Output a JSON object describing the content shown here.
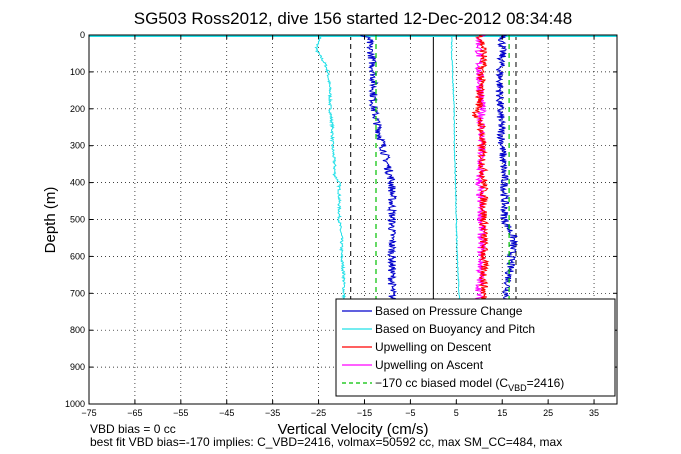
{
  "chart_data": {
    "type": "line",
    "title": "SG503 Ross2012, dive 156 started 12-Dec-2012 08:34:48",
    "xlabel": "Vertical Velocity (cm/s)",
    "ylabel": "Depth (m)",
    "xlim": [
      -75,
      40
    ],
    "ylim": [
      1000,
      0
    ],
    "x_ticks": [
      -75,
      -65,
      -55,
      -45,
      -35,
      -25,
      -15,
      -5,
      5,
      15,
      25,
      35
    ],
    "y_ticks": [
      0,
      100,
      200,
      300,
      400,
      500,
      600,
      700,
      800,
      900,
      1000
    ],
    "grid": true,
    "legend_placement": "bottom-right",
    "colors": {
      "pressure": "#0000cc",
      "buoyancy": "#22e0e8",
      "descent": "#ff0000",
      "ascent": "#ff00ff",
      "model": "#00c000",
      "reference": "#000000"
    },
    "series": [
      {
        "name": "Based on Pressure Change",
        "noise": 0.9,
        "depth": [
          0,
          10,
          30,
          50,
          100,
          150,
          200,
          250,
          300,
          350,
          400,
          450,
          500,
          550,
          600,
          650,
          700,
          720
        ],
        "velocity": [
          -16,
          -14,
          -14,
          -13.5,
          -13,
          -13,
          -13,
          -12,
          -11,
          -10,
          -9,
          -9,
          -9,
          -9,
          -9,
          -9,
          -9,
          -9
        ]
      },
      {
        "name": "Based on Pressure Change",
        "noise": 0.9,
        "depth": [
          0,
          10,
          50,
          100,
          200,
          300,
          400,
          500,
          550,
          600,
          650,
          700,
          720
        ],
        "velocity": [
          16,
          15,
          15,
          14.5,
          14.5,
          15,
          15.5,
          15.5,
          17.5,
          17,
          16.5,
          16,
          16
        ]
      },
      {
        "name": "Based on Buoyancy and Pitch",
        "noise": 0.3,
        "depth": [
          0,
          5,
          15,
          40,
          60,
          80,
          100,
          150,
          200,
          250,
          300,
          350,
          380,
          400,
          450,
          500,
          550,
          600,
          650,
          700,
          720
        ],
        "velocity": [
          -23.5,
          -24.5,
          -25,
          -25.5,
          -24.5,
          -23.5,
          -23,
          -22.5,
          -22.5,
          -22,
          -22,
          -21.5,
          -21.5,
          -20.5,
          -20.5,
          -20.5,
          -20,
          -20,
          -19.5,
          -19.5,
          -19.5
        ]
      },
      {
        "name": "Based on Buoyancy and Pitch",
        "noise": 0.1,
        "depth": [
          0,
          50,
          100,
          200,
          300,
          400,
          500,
          600,
          700,
          720
        ],
        "velocity": [
          4,
          4,
          4.2,
          4.5,
          4.6,
          4.8,
          5,
          5.2,
          5.6,
          5.7
        ]
      },
      {
        "name": "Upwelling on Descent",
        "noise": 0.9,
        "depth": [
          0,
          10,
          50,
          100,
          200,
          220,
          240,
          300,
          400,
          450,
          500,
          600,
          700,
          720
        ],
        "velocity": [
          10,
          10.5,
          11,
          10.5,
          10,
          9,
          10.5,
          10.5,
          11,
          11,
          11,
          11,
          11,
          11
        ]
      },
      {
        "name": "Upwelling on Ascent",
        "noise": 0.9,
        "depth": [
          0,
          10,
          50,
          100,
          200,
          300,
          400,
          500,
          600,
          700,
          720
        ],
        "velocity": [
          11,
          10,
          10,
          10,
          10.5,
          10.5,
          10,
          10.5,
          10.5,
          10,
          10
        ]
      },
      {
        "name": "-170 cc biased model",
        "noise": 0,
        "depth": [
          0,
          720
        ],
        "velocity": [
          16.5,
          16.5
        ]
      },
      {
        "name": "-170 cc biased model",
        "noise": 0,
        "depth": [
          0,
          720
        ],
        "velocity": [
          -12.5,
          -12.5
        ]
      }
    ],
    "surface_lines": [
      {
        "color": "#ff0000",
        "depth": 0,
        "x_range": [
          15,
          40
        ]
      },
      {
        "color": "#22e0e8",
        "depth": 0,
        "x_range": [
          -75,
          40
        ]
      }
    ],
    "reference_lines": [
      {
        "style": "dashed",
        "x": -18,
        "depth_range": [
          0,
          720
        ]
      },
      {
        "style": "dashed",
        "x": 18,
        "depth_range": [
          0,
          720
        ]
      },
      {
        "style": "solid",
        "x": 0,
        "depth_range": [
          0,
          720
        ]
      }
    ],
    "legend": [
      {
        "label": "Based on Pressure Change",
        "color": "#0000cc",
        "style": "solid"
      },
      {
        "label": "Based on Buoyancy and Pitch",
        "color": "#22e0e8",
        "style": "solid"
      },
      {
        "label": "Upwelling on Descent",
        "color": "#ff0000",
        "style": "solid"
      },
      {
        "label": "Upwelling on Ascent",
        "color": "#ff00ff",
        "style": "solid"
      },
      {
        "label_pre": "-170 cc biased model (C",
        "label_sub": "VBD",
        "label_post": "=2416)",
        "color": "#00c000",
        "style": "dashed"
      }
    ]
  },
  "footer": {
    "line1": "VBD bias = 0 cc",
    "line2": "best fit VBD bias=-170 implies: C_VBD=2416, volmax=50592 cc, max SM_CC=484, max"
  }
}
